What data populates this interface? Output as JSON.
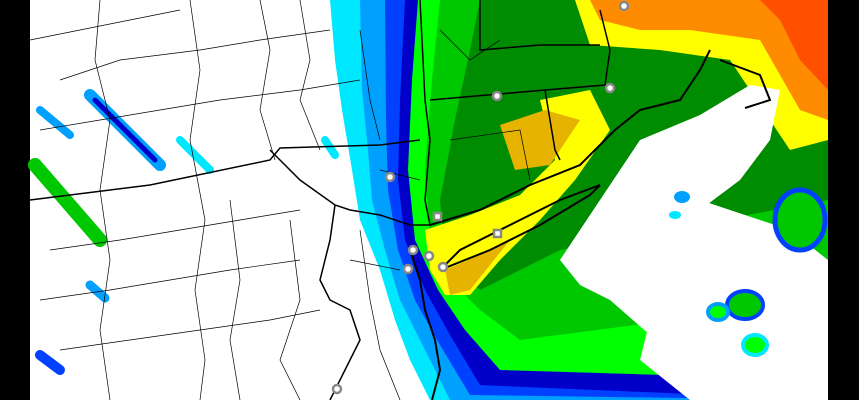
{
  "map": {
    "type": "precipitation forecast map",
    "colors": {
      "frame": "#000000",
      "land": "#ffffff",
      "boundary": "#000000",
      "light_cyan": "#00e8ff",
      "light_blue": "#00a0ff",
      "blue": "#0040ff",
      "dark_blue": "#0000c8",
      "light_green": "#00ff00",
      "green": "#00c800",
      "dark_green": "#008c00",
      "yellow": "#ffff00",
      "gold": "#e6b400",
      "orange": "#ff8c00",
      "red_orange": "#ff5000",
      "marker": "#888888"
    },
    "marker_icon": "city-marker-icon"
  }
}
